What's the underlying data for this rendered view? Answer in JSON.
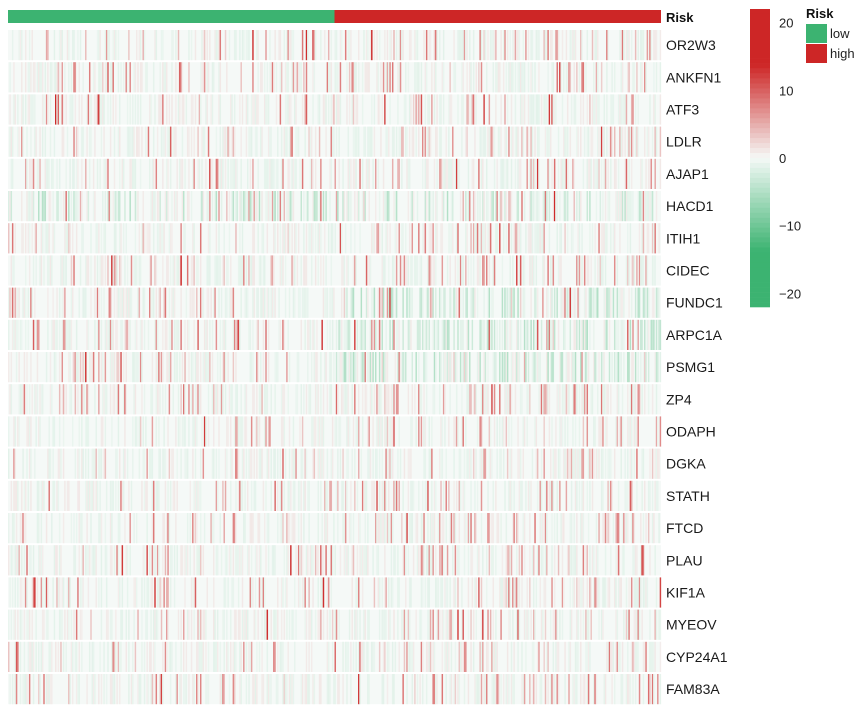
{
  "chart_data": {
    "type": "heatmap",
    "annotation": {
      "label": "Risk",
      "groups": [
        {
          "name": "low",
          "fraction": 0.5,
          "color": "#3CB371"
        },
        {
          "name": "high",
          "fraction": 0.5,
          "color": "#CD2626"
        }
      ]
    },
    "genes": [
      "OR2W3",
      "ANKFN1",
      "ATF3",
      "LDLR",
      "AJAP1",
      "HACD1",
      "ITIH1",
      "CIDEC",
      "FUNDC1",
      "ARPC1A",
      "PSMG1",
      "ZP4",
      "ODAPH",
      "DGKA",
      "STATH",
      "FTCD",
      "PLAU",
      "KIF1A",
      "MYEOV",
      "CYP24A1",
      "FAM83A"
    ],
    "colorbar": {
      "ticks": [
        20,
        10,
        0,
        -10,
        -20
      ],
      "range": [
        -22,
        22
      ],
      "low_color": "#3CB371",
      "mid_color": "#F5F9F7",
      "high_color": "#CD2626"
    },
    "legend": {
      "title": "Risk",
      "entries": [
        {
          "label": "low",
          "color": "#3CB371"
        },
        {
          "label": "high",
          "color": "#CD2626"
        }
      ]
    },
    "samples": 500,
    "description": "Expression heatmap, samples sorted by risk score"
  }
}
